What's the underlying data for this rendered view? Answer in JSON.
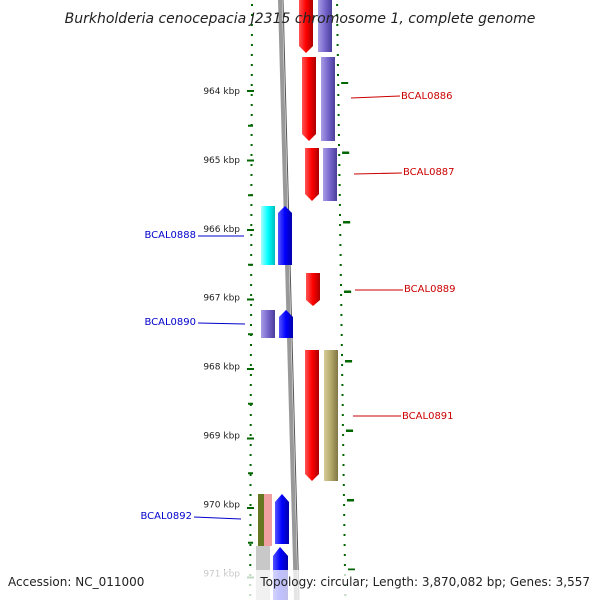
{
  "title": "Burkholderia cenocepacia J2315 chromosome 1, complete genome",
  "footer": {
    "accession": "Accession: NC_011000",
    "topology": "Topology: circular; Length: 3,870,082 bp; Genes: 3,557"
  },
  "colors": {
    "backbone": "#808080",
    "forward_label": "#cc0000",
    "reverse_label": "#0000cc",
    "tick": "#006600",
    "red": "#ff0000",
    "purple": "#7766cc",
    "blue": "#0000ff",
    "cyan": "#00ffff",
    "olive": "#b3a86a"
  },
  "scale": {
    "unit": "kbp",
    "ticks": [
      {
        "label": "964 kbp",
        "kbp": 964
      },
      {
        "label": "965 kbp",
        "kbp": 965
      },
      {
        "label": "966 kbp",
        "kbp": 966
      },
      {
        "label": "967 kbp",
        "kbp": 967
      },
      {
        "label": "968 kbp",
        "kbp": 968
      },
      {
        "label": "969 kbp",
        "kbp": 969
      },
      {
        "label": "970 kbp",
        "kbp": 970
      },
      {
        "label": "971 kbp",
        "kbp": 971
      }
    ]
  },
  "gene_labels": [
    {
      "text": "BCAL0886",
      "strand": "forward"
    },
    {
      "text": "BCAL0887",
      "strand": "forward"
    },
    {
      "text": "BCAL0888",
      "strand": "reverse"
    },
    {
      "text": "BCAL0889",
      "strand": "forward"
    },
    {
      "text": "BCAL0890",
      "strand": "reverse"
    },
    {
      "text": "BCAL0891",
      "strand": "forward"
    },
    {
      "text": "BCAL0892",
      "strand": "reverse"
    }
  ]
}
